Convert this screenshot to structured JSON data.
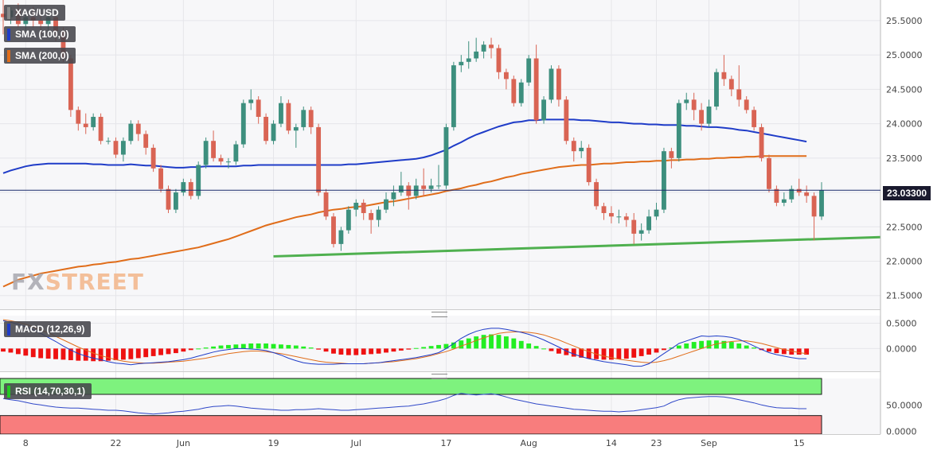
{
  "chart_data": {
    "type": "candlestick",
    "symbol": "XAG/USD",
    "last_price": "23.03300",
    "x_tick_labels": [
      "8",
      "22",
      "Jun",
      "19",
      "Jul",
      "17",
      "Aug",
      "14",
      "23",
      "Sep",
      "15"
    ],
    "y_tick_labels": [
      "25.5000",
      "25.0000",
      "24.5000",
      "24.0000",
      "23.5000",
      "23.0000",
      "22.5000",
      "22.0000",
      "21.5000"
    ],
    "ylim": [
      21.3,
      25.8
    ],
    "grid": true,
    "legend": [
      "SMA (100,0)",
      "SMA (200,0)"
    ],
    "candles": [
      [
        25.6,
        25.55,
        25.8,
        25.3
      ],
      [
        25.55,
        25.65,
        25.7,
        25.45
      ],
      [
        25.65,
        25.45,
        25.75,
        25.4
      ],
      [
        25.45,
        25.55,
        25.6,
        25.35
      ],
      [
        25.55,
        25.5,
        25.7,
        25.4
      ],
      [
        25.5,
        25.45,
        25.6,
        25.3
      ],
      [
        25.45,
        25.55,
        25.6,
        25.35
      ],
      [
        25.55,
        25.35,
        25.6,
        25.2
      ],
      [
        25.35,
        24.95,
        25.4,
        24.9
      ],
      [
        24.95,
        24.2,
        25.0,
        24.1
      ],
      [
        24.2,
        24.0,
        24.25,
        23.9
      ],
      [
        24.0,
        23.95,
        24.15,
        23.85
      ],
      [
        23.95,
        24.1,
        24.15,
        23.9
      ],
      [
        24.1,
        23.75,
        24.15,
        23.7
      ],
      [
        23.75,
        23.75,
        23.8,
        23.7
      ],
      [
        23.75,
        23.55,
        23.8,
        23.5
      ],
      [
        23.55,
        23.75,
        23.8,
        23.45
      ],
      [
        23.75,
        24.0,
        24.05,
        23.7
      ],
      [
        24.0,
        23.85,
        24.05,
        23.75
      ],
      [
        23.85,
        23.65,
        23.9,
        23.55
      ],
      [
        23.65,
        23.35,
        23.7,
        23.3
      ],
      [
        23.35,
        23.05,
        23.4,
        23.0
      ],
      [
        23.05,
        22.75,
        23.1,
        22.7
      ],
      [
        22.75,
        23.0,
        23.05,
        22.7
      ],
      [
        23.0,
        23.15,
        23.2,
        22.95
      ],
      [
        23.15,
        22.95,
        23.2,
        22.9
      ],
      [
        22.95,
        23.4,
        23.45,
        22.9
      ],
      [
        23.4,
        23.75,
        23.8,
        23.35
      ],
      [
        23.75,
        23.5,
        23.9,
        23.45
      ],
      [
        23.5,
        23.45,
        23.55,
        23.4
      ],
      [
        23.45,
        23.45,
        23.5,
        23.35
      ],
      [
        23.45,
        23.7,
        23.75,
        23.4
      ],
      [
        23.7,
        24.3,
        24.35,
        23.65
      ],
      [
        24.3,
        24.35,
        24.5,
        24.2
      ],
      [
        24.35,
        24.1,
        24.4,
        24.0
      ],
      [
        24.1,
        23.75,
        24.15,
        23.7
      ],
      [
        23.75,
        24.0,
        24.05,
        23.7
      ],
      [
        24.0,
        24.3,
        24.4,
        23.95
      ],
      [
        24.3,
        23.9,
        24.35,
        23.85
      ],
      [
        23.9,
        23.95,
        24.0,
        23.65
      ],
      [
        23.95,
        24.2,
        24.25,
        23.9
      ],
      [
        24.2,
        23.95,
        24.25,
        23.85
      ],
      [
        23.95,
        23.0,
        24.0,
        22.95
      ],
      [
        23.0,
        22.65,
        23.05,
        22.6
      ],
      [
        22.65,
        22.25,
        22.7,
        22.2
      ],
      [
        22.25,
        22.45,
        22.5,
        22.15
      ],
      [
        22.45,
        22.75,
        22.8,
        22.4
      ],
      [
        22.75,
        22.85,
        22.9,
        22.65
      ],
      [
        22.85,
        22.7,
        22.9,
        22.6
      ],
      [
        22.7,
        22.6,
        22.75,
        22.4
      ],
      [
        22.6,
        22.75,
        22.8,
        22.5
      ],
      [
        22.75,
        22.9,
        23.0,
        22.7
      ],
      [
        22.9,
        23.0,
        23.1,
        22.8
      ],
      [
        23.0,
        23.1,
        23.3,
        22.95
      ],
      [
        23.1,
        22.95,
        23.15,
        22.75
      ],
      [
        22.95,
        23.1,
        23.2,
        22.9
      ],
      [
        23.1,
        23.05,
        23.35,
        22.95
      ],
      [
        23.05,
        23.1,
        23.2,
        23.0
      ],
      [
        23.1,
        23.1,
        23.4,
        23.05
      ],
      [
        23.1,
        23.95,
        24.0,
        23.05
      ],
      [
        23.95,
        24.85,
        24.9,
        23.9
      ],
      [
        24.85,
        24.9,
        25.0,
        24.75
      ],
      [
        24.9,
        24.95,
        25.2,
        24.8
      ],
      [
        24.95,
        25.05,
        25.25,
        24.9
      ],
      [
        25.05,
        25.15,
        25.2,
        24.95
      ],
      [
        25.15,
        25.1,
        25.25,
        24.95
      ],
      [
        25.1,
        24.75,
        25.15,
        24.65
      ],
      [
        24.75,
        24.65,
        24.8,
        24.5
      ],
      [
        24.65,
        24.3,
        24.7,
        24.25
      ],
      [
        24.3,
        24.6,
        24.65,
        24.25
      ],
      [
        24.6,
        24.95,
        25.0,
        24.55
      ],
      [
        24.95,
        24.05,
        25.15,
        24.0
      ],
      [
        24.05,
        24.35,
        24.4,
        24.0
      ],
      [
        24.35,
        24.8,
        24.85,
        24.3
      ],
      [
        24.8,
        24.35,
        24.85,
        24.25
      ],
      [
        24.35,
        23.75,
        24.4,
        23.7
      ],
      [
        23.75,
        23.6,
        23.8,
        23.45
      ],
      [
        23.6,
        23.65,
        23.75,
        23.5
      ],
      [
        23.65,
        23.15,
        23.7,
        23.1
      ],
      [
        23.15,
        22.8,
        23.2,
        22.75
      ],
      [
        22.8,
        22.7,
        22.85,
        22.6
      ],
      [
        22.7,
        22.65,
        22.8,
        22.55
      ],
      [
        22.65,
        22.65,
        22.75,
        22.55
      ],
      [
        22.65,
        22.6,
        22.7,
        22.5
      ],
      [
        22.6,
        22.4,
        22.7,
        22.25
      ],
      [
        22.4,
        22.45,
        22.55,
        22.3
      ],
      [
        22.45,
        22.65,
        22.75,
        22.4
      ],
      [
        22.65,
        22.75,
        22.85,
        22.6
      ],
      [
        22.75,
        23.6,
        23.65,
        22.7
      ],
      [
        23.6,
        23.5,
        23.65,
        23.35
      ],
      [
        23.5,
        24.3,
        24.35,
        23.45
      ],
      [
        24.3,
        24.35,
        24.45,
        24.2
      ],
      [
        24.35,
        24.2,
        24.45,
        24.05
      ],
      [
        24.2,
        24.0,
        24.3,
        23.9
      ],
      [
        24.0,
        24.25,
        24.35,
        23.95
      ],
      [
        24.25,
        24.75,
        24.8,
        24.2
      ],
      [
        24.75,
        24.65,
        25.0,
        24.55
      ],
      [
        24.65,
        24.5,
        24.7,
        24.4
      ],
      [
        24.5,
        24.35,
        24.85,
        24.25
      ],
      [
        24.35,
        24.2,
        24.4,
        24.15
      ],
      [
        24.2,
        23.95,
        24.25,
        23.9
      ],
      [
        23.95,
        23.5,
        24.0,
        23.45
      ],
      [
        23.5,
        23.05,
        23.55,
        23.0
      ],
      [
        23.05,
        22.85,
        23.1,
        22.8
      ],
      [
        22.85,
        22.9,
        23.0,
        22.8
      ],
      [
        22.9,
        23.05,
        23.1,
        22.85
      ],
      [
        23.05,
        23.0,
        23.2,
        22.95
      ],
      [
        23.0,
        22.95,
        23.1,
        22.85
      ],
      [
        22.95,
        22.65,
        23.0,
        22.3
      ],
      [
        22.65,
        23.03,
        23.15,
        22.6
      ]
    ],
    "sma100": [
      23.28,
      23.32,
      23.35,
      23.38,
      23.4,
      23.41,
      23.42,
      23.42,
      23.42,
      23.42,
      23.42,
      23.42,
      23.41,
      23.41,
      23.4,
      23.4,
      23.4,
      23.41,
      23.4,
      23.39,
      23.39,
      23.38,
      23.37,
      23.36,
      23.36,
      23.37,
      23.37,
      23.38,
      23.38,
      23.38,
      23.38,
      23.38,
      23.39,
      23.39,
      23.4,
      23.4,
      23.4,
      23.4,
      23.4,
      23.4,
      23.4,
      23.4,
      23.4,
      23.4,
      23.4,
      23.4,
      23.41,
      23.41,
      23.42,
      23.43,
      23.44,
      23.45,
      23.46,
      23.47,
      23.48,
      23.49,
      23.51,
      23.54,
      23.58,
      23.62,
      23.68,
      23.73,
      23.79,
      23.84,
      23.88,
      23.92,
      23.96,
      23.99,
      24.02,
      24.03,
      24.05,
      24.05,
      24.06,
      24.06,
      24.06,
      24.06,
      24.06,
      24.05,
      24.05,
      24.04,
      24.03,
      24.02,
      24.02,
      24.01,
      24.0,
      24.0,
      23.99,
      23.99,
      23.98,
      23.98,
      23.98,
      23.97,
      23.97,
      23.96,
      23.95,
      23.95,
      23.94,
      23.93,
      23.91,
      23.9,
      23.88,
      23.86,
      23.84,
      23.82,
      23.8,
      23.78,
      23.76,
      23.74
    ],
    "sma200": [
      21.63,
      21.68,
      21.73,
      21.76,
      21.79,
      21.82,
      21.84,
      21.86,
      21.88,
      21.9,
      21.92,
      21.93,
      21.95,
      21.96,
      21.98,
      21.99,
      22.01,
      22.03,
      22.04,
      22.06,
      22.08,
      22.1,
      22.12,
      22.14,
      22.16,
      22.18,
      22.2,
      22.23,
      22.26,
      22.29,
      22.32,
      22.36,
      22.4,
      22.44,
      22.48,
      22.52,
      22.55,
      22.58,
      22.61,
      22.64,
      22.66,
      22.68,
      22.71,
      22.73,
      22.75,
      22.76,
      22.78,
      22.79,
      22.8,
      22.82,
      22.84,
      22.86,
      22.87,
      22.89,
      22.91,
      22.93,
      22.95,
      22.97,
      22.99,
      23.02,
      23.04,
      23.06,
      23.09,
      23.11,
      23.14,
      23.16,
      23.19,
      23.22,
      23.24,
      23.27,
      23.29,
      23.31,
      23.33,
      23.35,
      23.37,
      23.38,
      23.39,
      23.4,
      23.4,
      23.41,
      23.42,
      23.42,
      23.43,
      23.44,
      23.44,
      23.45,
      23.45,
      23.46,
      23.46,
      23.47,
      23.47,
      23.48,
      23.48,
      23.49,
      23.49,
      23.5,
      23.5,
      23.51,
      23.51,
      23.52,
      23.52,
      23.53,
      23.53,
      23.53,
      23.53,
      23.53,
      23.53,
      23.53
    ],
    "trendline": {
      "from": 22.07,
      "to": 22.35
    },
    "macd": {
      "label": "MACD (12,26,9)",
      "y_tick_labels": [
        "0.5000",
        "0.0000"
      ],
      "ylim": [
        -0.45,
        0.65
      ],
      "hist": [
        -0.06,
        -0.08,
        -0.11,
        -0.14,
        -0.17,
        -0.19,
        -0.2,
        -0.21,
        -0.22,
        -0.23,
        -0.24,
        -0.24,
        -0.25,
        -0.25,
        -0.24,
        -0.23,
        -0.22,
        -0.21,
        -0.19,
        -0.17,
        -0.15,
        -0.13,
        -0.11,
        -0.09,
        -0.06,
        -0.03,
        0.0,
        0.02,
        0.04,
        0.06,
        0.07,
        0.08,
        0.09,
        0.1,
        0.1,
        0.1,
        0.09,
        0.08,
        0.07,
        0.06,
        0.04,
        0.02,
        -0.02,
        -0.06,
        -0.1,
        -0.12,
        -0.13,
        -0.13,
        -0.12,
        -0.11,
        -0.1,
        -0.08,
        -0.06,
        -0.04,
        -0.02,
        0.01,
        0.03,
        0.05,
        0.07,
        0.09,
        0.12,
        0.16,
        0.2,
        0.24,
        0.27,
        0.28,
        0.27,
        0.24,
        0.2,
        0.15,
        0.1,
        0.05,
        0.0,
        -0.05,
        -0.1,
        -0.13,
        -0.16,
        -0.18,
        -0.2,
        -0.21,
        -0.22,
        -0.22,
        -0.21,
        -0.2,
        -0.18,
        -0.15,
        -0.12,
        -0.08,
        -0.03,
        0.02,
        0.06,
        0.1,
        0.13,
        0.15,
        0.16,
        0.16,
        0.15,
        0.13,
        0.1,
        0.06,
        0.02,
        -0.03,
        -0.06,
        -0.09,
        -0.11,
        -0.12,
        -0.12,
        -0.12
      ],
      "macd_line": [
        0.55,
        0.52,
        0.48,
        0.43,
        0.37,
        0.3,
        0.22,
        0.14,
        0.05,
        -0.03,
        -0.1,
        -0.15,
        -0.19,
        -0.22,
        -0.26,
        -0.29,
        -0.3,
        -0.32,
        -0.3,
        -0.29,
        -0.28,
        -0.27,
        -0.26,
        -0.24,
        -0.22,
        -0.19,
        -0.15,
        -0.11,
        -0.07,
        -0.04,
        -0.02,
        0.0,
        0.0,
        -0.01,
        -0.02,
        -0.04,
        -0.08,
        -0.13,
        -0.19,
        -0.24,
        -0.28,
        -0.3,
        -0.31,
        -0.31,
        -0.31,
        -0.3,
        -0.3,
        -0.3,
        -0.3,
        -0.29,
        -0.28,
        -0.26,
        -0.24,
        -0.22,
        -0.2,
        -0.18,
        -0.15,
        -0.12,
        -0.08,
        0.0,
        0.1,
        0.2,
        0.28,
        0.34,
        0.38,
        0.4,
        0.4,
        0.38,
        0.35,
        0.32,
        0.28,
        0.23,
        0.17,
        0.1,
        0.03,
        -0.05,
        -0.11,
        -0.16,
        -0.2,
        -0.23,
        -0.26,
        -0.28,
        -0.3,
        -0.32,
        -0.35,
        -0.35,
        -0.3,
        -0.2,
        -0.1,
        0.0,
        0.1,
        0.15,
        0.2,
        0.25,
        0.24,
        0.25,
        0.24,
        0.22,
        0.18,
        0.12,
        0.05,
        -0.02,
        -0.08,
        -0.12,
        -0.15,
        -0.18,
        -0.2,
        -0.2
      ],
      "signal_line": [
        0.57,
        0.55,
        0.52,
        0.48,
        0.43,
        0.37,
        0.31,
        0.24,
        0.17,
        0.1,
        0.03,
        -0.03,
        -0.09,
        -0.14,
        -0.18,
        -0.22,
        -0.25,
        -0.27,
        -0.28,
        -0.29,
        -0.29,
        -0.28,
        -0.27,
        -0.26,
        -0.25,
        -0.23,
        -0.21,
        -0.19,
        -0.16,
        -0.13,
        -0.1,
        -0.08,
        -0.06,
        -0.05,
        -0.05,
        -0.06,
        -0.08,
        -0.1,
        -0.13,
        -0.16,
        -0.19,
        -0.22,
        -0.25,
        -0.27,
        -0.28,
        -0.29,
        -0.3,
        -0.3,
        -0.3,
        -0.29,
        -0.28,
        -0.27,
        -0.26,
        -0.24,
        -0.22,
        -0.2,
        -0.17,
        -0.14,
        -0.1,
        -0.06,
        -0.01,
        0.05,
        0.1,
        0.16,
        0.21,
        0.26,
        0.3,
        0.32,
        0.33,
        0.33,
        0.32,
        0.3,
        0.27,
        0.22,
        0.17,
        0.11,
        0.05,
        -0.01,
        -0.06,
        -0.11,
        -0.15,
        -0.18,
        -0.21,
        -0.23,
        -0.25,
        -0.27,
        -0.28,
        -0.27,
        -0.24,
        -0.2,
        -0.15,
        -0.1,
        -0.05,
        0.0,
        0.05,
        0.09,
        0.12,
        0.14,
        0.15,
        0.15,
        0.13,
        0.1,
        0.06,
        0.02,
        -0.02,
        -0.05,
        -0.08,
        -0.1
      ]
    },
    "rsi": {
      "label": "RSI (14,70,30,1)",
      "y_tick_labels": [
        "50.0000",
        "0.0000"
      ],
      "ylim": [
        -5,
        100
      ],
      "overbought": 70,
      "oversold": 30,
      "values": [
        62,
        60,
        58,
        55,
        52,
        50,
        48,
        46,
        45,
        44,
        44,
        43,
        42,
        41,
        40,
        40,
        39,
        37,
        35,
        34,
        33,
        34,
        35,
        37,
        38,
        40,
        42,
        45,
        47,
        48,
        49,
        48,
        46,
        44,
        43,
        42,
        41,
        40,
        40,
        41,
        41,
        42,
        43,
        42,
        41,
        40,
        40,
        41,
        42,
        43,
        44,
        45,
        46,
        47,
        48,
        50,
        52,
        55,
        58,
        62,
        68,
        72,
        70,
        69,
        70,
        71,
        69,
        65,
        61,
        58,
        55,
        52,
        50,
        48,
        46,
        44,
        42,
        41,
        40,
        39,
        38,
        38,
        37,
        38,
        39,
        41,
        43,
        45,
        48,
        55,
        60,
        63,
        64,
        65,
        66,
        66,
        65,
        63,
        60,
        57,
        54,
        50,
        47,
        45,
        44,
        44,
        43,
        43
      ]
    }
  },
  "watermark": {
    "part1": "FX",
    "part2": "STREET"
  },
  "colors": {
    "bull": "#3d8f7e",
    "bear": "#d96454",
    "sma100": "#1f3cc8",
    "sma200": "#e06d1a",
    "trendline": "#4fb04f",
    "macd_hist_pos": "#22ee22",
    "macd_hist_neg": "#ee1111",
    "rsi_line": "#3048c8",
    "rsi_overbought": "#7ef27e",
    "rsi_oversold": "#f87d7d"
  }
}
